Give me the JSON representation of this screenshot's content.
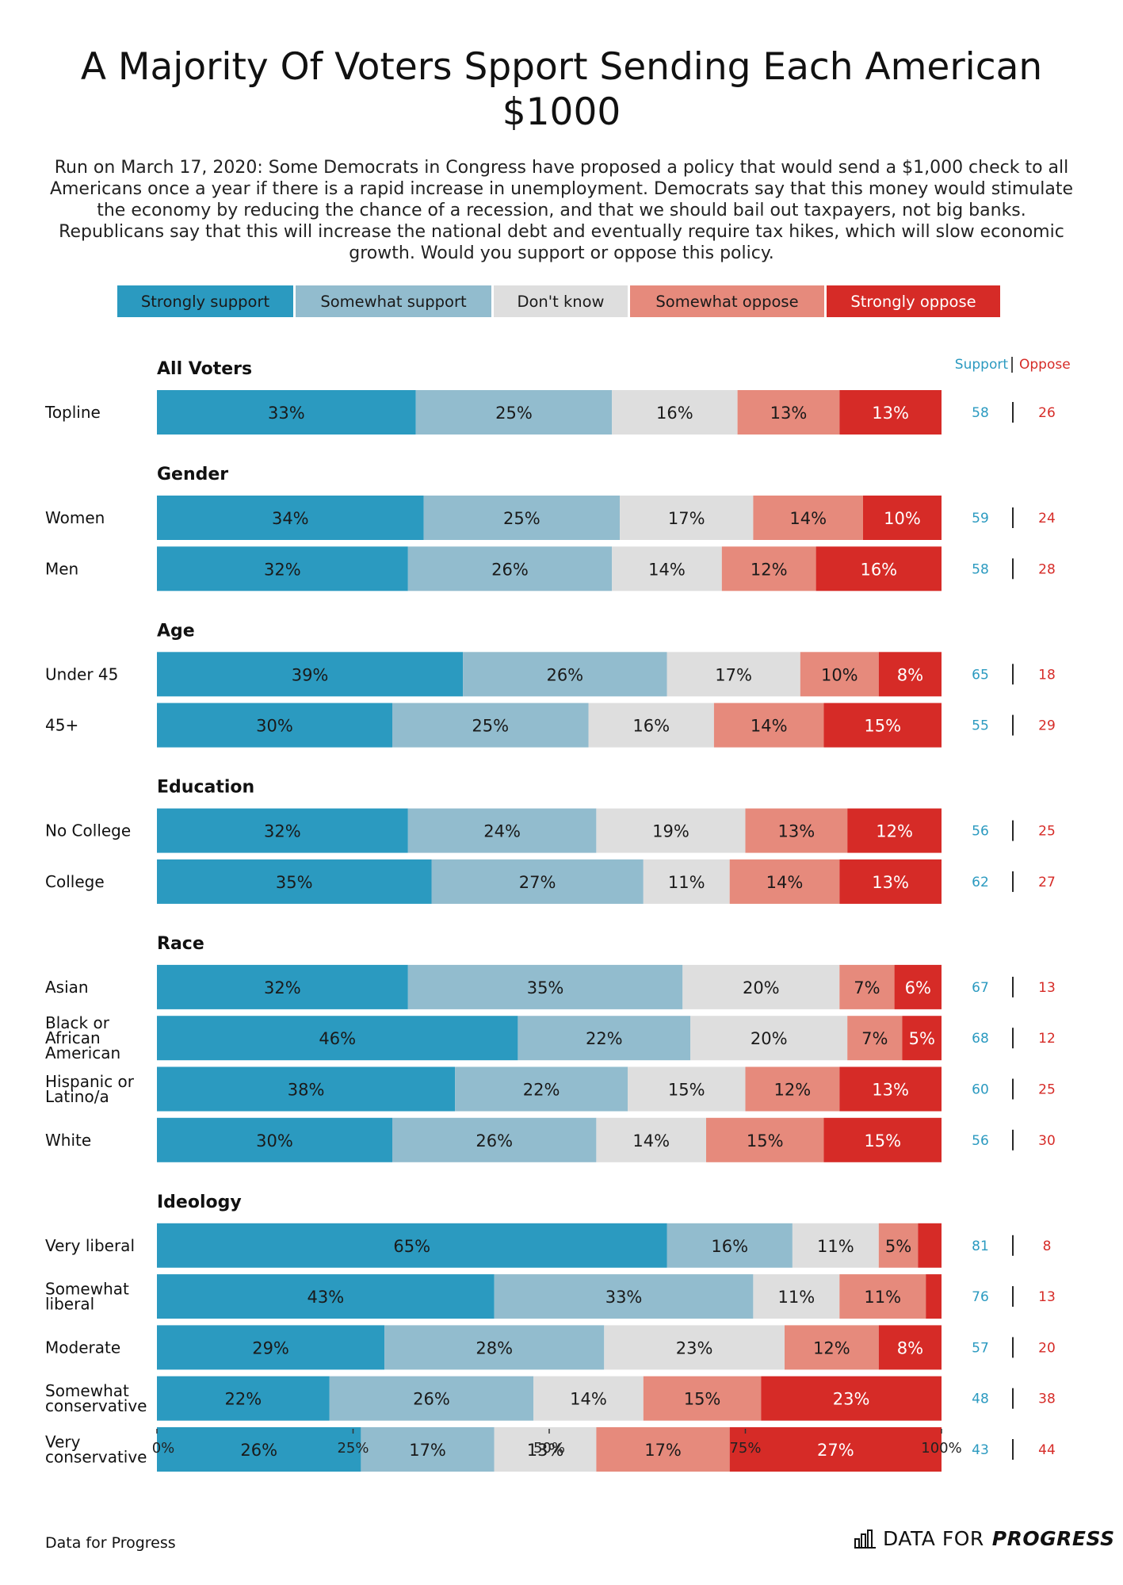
{
  "title": "A Majority Of Voters Spport Sending Each American $1000",
  "subtitle": "Run on March 17, 2020: Some Democrats in Congress have proposed a policy that would send a $1,000 check to all Americans once a year if there is a rapid increase in unemployment. Democrats say that this money would stimulate the economy by reducing the chance of a recession, and that we should bail out taxpayers, not big banks. Republicans say that this will increase the national debt and eventually require tax hikes, which will slow economic growth. Would you support or oppose this policy.",
  "colors": {
    "strongly_support": "#2b9ac0",
    "somewhat_support": "#92bcce",
    "dont_know": "#dedede",
    "somewhat_oppose": "#e68a7c",
    "strongly_oppose": "#d62b27",
    "support_text": "#2b9ac0",
    "oppose_text": "#d62b27"
  },
  "legend": [
    {
      "label": "Strongly support",
      "color": "#2b9ac0",
      "text_color": "#1a1a1a"
    },
    {
      "label": "Somewhat support",
      "color": "#92bcce",
      "text_color": "#1a1a1a"
    },
    {
      "label": "Don't know",
      "color": "#dedede",
      "text_color": "#1a1a1a"
    },
    {
      "label": "Somewhat oppose",
      "color": "#e68a7c",
      "text_color": "#1a1a1a"
    },
    {
      "label": "Strongly oppose",
      "color": "#d62b27",
      "text_color": "#ffffff"
    }
  ],
  "net_headers": {
    "support": "Support",
    "oppose": "Oppose"
  },
  "chart_data": {
    "type": "stacked_bar_horizontal",
    "series_names": [
      "Strongly support",
      "Somewhat support",
      "Don't know",
      "Somewhat oppose",
      "Strongly oppose"
    ],
    "xlim": [
      0,
      100
    ],
    "ticks": [
      "0%",
      "25%",
      "50%",
      "75%",
      "100%"
    ],
    "tick_values": [
      0,
      25,
      50,
      75,
      100
    ],
    "groups": [
      {
        "title": "All Voters",
        "rows": [
          {
            "label": "Topline",
            "values": [
              33,
              25,
              16,
              13,
              13
            ],
            "support": "58",
            "oppose": "26"
          }
        ]
      },
      {
        "title": "Gender",
        "rows": [
          {
            "label": "Women",
            "values": [
              34,
              25,
              17,
              14,
              10
            ],
            "support": "59",
            "oppose": "24"
          },
          {
            "label": "Men",
            "values": [
              32,
              26,
              14,
              12,
              16
            ],
            "support": "58",
            "oppose": "28"
          }
        ]
      },
      {
        "title": "Age",
        "rows": [
          {
            "label": "Under 45",
            "values": [
              39,
              26,
              17,
              10,
              8
            ],
            "support": "65",
            "oppose": "18"
          },
          {
            "label": "45+",
            "values": [
              30,
              25,
              16,
              14,
              15
            ],
            "support": "55",
            "oppose": "29"
          }
        ]
      },
      {
        "title": "Education",
        "rows": [
          {
            "label": "No College",
            "values": [
              32,
              24,
              19,
              13,
              12
            ],
            "support": "56",
            "oppose": "25"
          },
          {
            "label": "College",
            "values": [
              35,
              27,
              11,
              14,
              13
            ],
            "support": "62",
            "oppose": "27"
          }
        ]
      },
      {
        "title": "Race",
        "rows": [
          {
            "label": "Asian",
            "values": [
              32,
              35,
              20,
              7,
              6
            ],
            "support": "67",
            "oppose": "13"
          },
          {
            "label": "Black or African American",
            "lines": [
              "Black or",
              "African",
              "American"
            ],
            "values": [
              46,
              22,
              20,
              7,
              5
            ],
            "support": "68",
            "oppose": "12"
          },
          {
            "label": "Hispanic or Latino/a",
            "lines": [
              "Hispanic or",
              "Latino/a"
            ],
            "values": [
              38,
              22,
              15,
              12,
              13
            ],
            "support": "60",
            "oppose": "25"
          },
          {
            "label": "White",
            "values": [
              30,
              26,
              14,
              15,
              15
            ],
            "support": "56",
            "oppose": "30"
          }
        ]
      },
      {
        "title": "Ideology",
        "rows": [
          {
            "label": "Very liberal",
            "values": [
              65,
              16,
              11,
              5,
              3
            ],
            "labels_shown": [
              "65%",
              "16%",
              "11%",
              "5%",
              ""
            ],
            "support": "81",
            "oppose": "8"
          },
          {
            "label": "Somewhat liberal",
            "lines": [
              "Somewhat",
              "liberal"
            ],
            "values": [
              43,
              33,
              11,
              11,
              2
            ],
            "labels_shown": [
              "43%",
              "33%",
              "11%",
              "11%",
              ""
            ],
            "support": "76",
            "oppose": "13"
          },
          {
            "label": "Moderate",
            "values": [
              29,
              28,
              23,
              12,
              8
            ],
            "support": "57",
            "oppose": "20"
          },
          {
            "label": "Somewhat conservative",
            "lines": [
              "Somewhat",
              "conservative"
            ],
            "values": [
              22,
              26,
              14,
              15,
              23
            ],
            "support": "48",
            "oppose": "38"
          },
          {
            "label": "Very conservative",
            "lines": [
              "Very",
              "conservative"
            ],
            "values": [
              26,
              17,
              13,
              17,
              27
            ],
            "support": "43",
            "oppose": "44"
          }
        ]
      }
    ]
  },
  "footer": {
    "source": "Data for Progress",
    "logo_light": "DATA FOR",
    "logo_bold": "PROGRESS"
  }
}
